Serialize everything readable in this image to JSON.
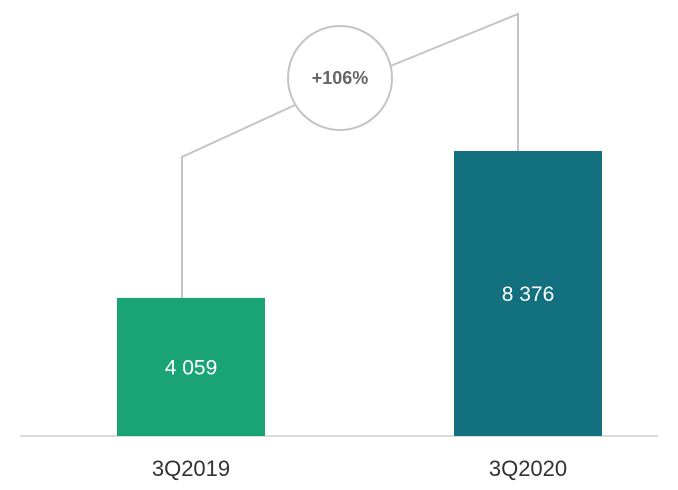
{
  "chart_data": {
    "type": "bar",
    "categories": [
      "3Q2019",
      "3Q2020"
    ],
    "values": [
      4059,
      8376
    ],
    "value_labels": [
      "4 059",
      "8 376"
    ],
    "colors": [
      "#1aa374",
      "#13707f"
    ],
    "annotation": "+106%"
  }
}
